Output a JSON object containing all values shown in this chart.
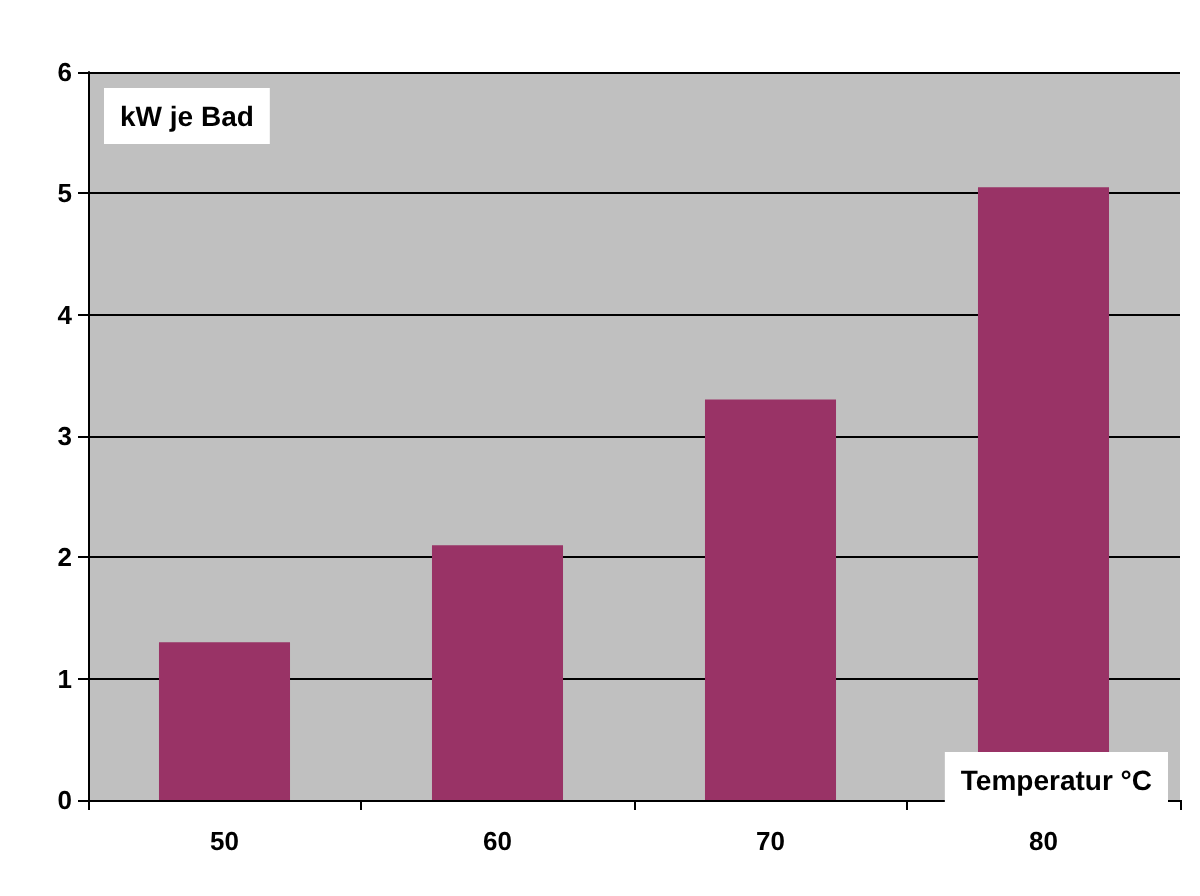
{
  "chart_data": {
    "type": "bar",
    "xlabel": "Temperatur °C",
    "ylabel": "kW je Bad",
    "categories": [
      "50",
      "60",
      "70",
      "80"
    ],
    "values": [
      1.3,
      2.1,
      3.3,
      5.05
    ],
    "color": "#993366",
    "ylim": [
      0,
      6
    ],
    "yticks": [
      0,
      1,
      2,
      3,
      4,
      5,
      6
    ],
    "grid": "y"
  }
}
